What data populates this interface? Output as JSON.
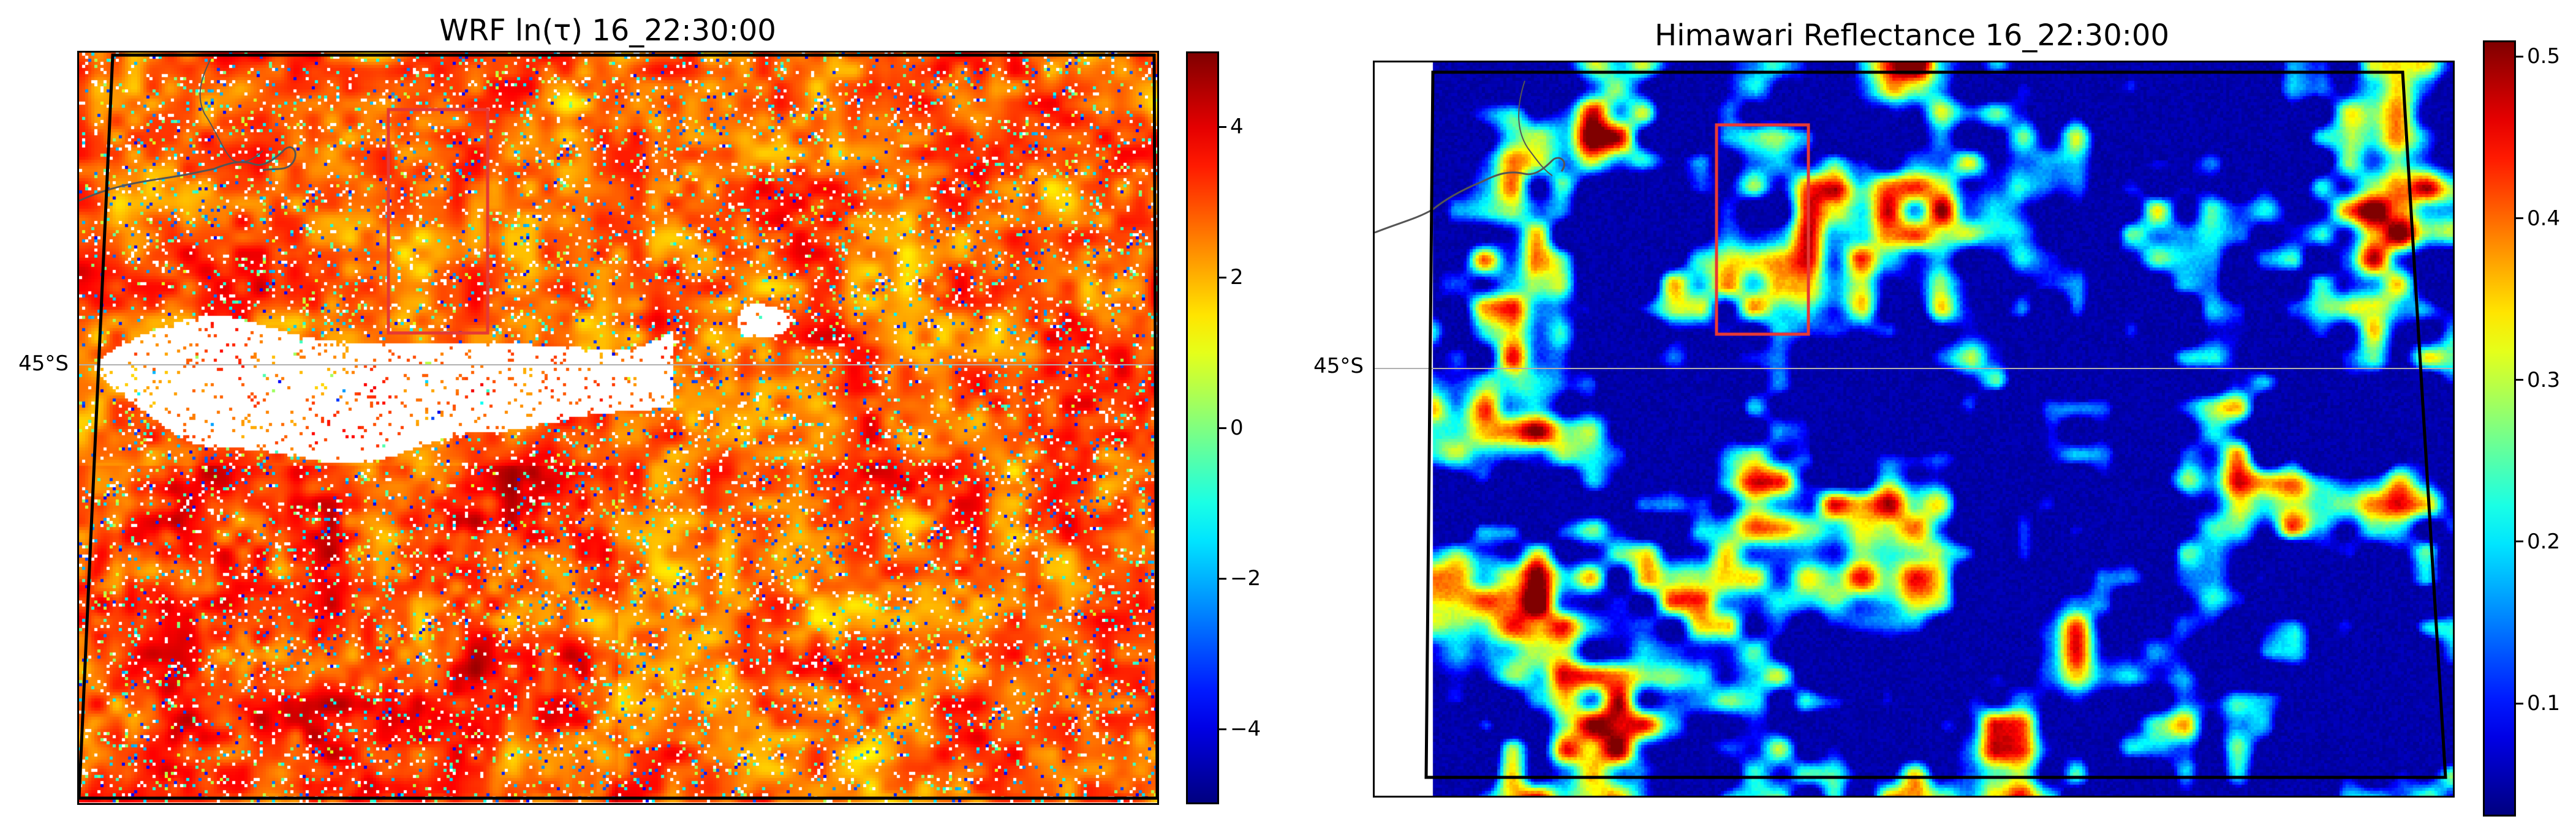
{
  "left_panel": {
    "title": "WRF ln(τ) 16_22:30:00",
    "lat_label": "45°S",
    "colorbar": {
      "min": -5,
      "max": 5,
      "ticks": [
        "4",
        "2",
        "0",
        "−2",
        "−4"
      ],
      "colormap": "jet"
    },
    "field_summary": {
      "typical_value": 3.5,
      "clear_sky": "white gaps"
    }
  },
  "right_panel": {
    "title": "Himawari Reflectance 16_22:30:00",
    "lat_label": "45°S",
    "colorbar": {
      "min": 0.03,
      "max": 0.51,
      "ticks": [
        "0.5",
        "0.4",
        "0.3",
        "0.2",
        "0.1"
      ],
      "colormap": "jet"
    },
    "field_summary": {
      "background_value": 0.05,
      "cloud_values": [
        0.25,
        0.45
      ]
    }
  },
  "colors": {
    "highlight_box": "#e53935",
    "domain_outline": "#000000",
    "coastline": "#555555",
    "gridline": "#b0b0b0"
  }
}
